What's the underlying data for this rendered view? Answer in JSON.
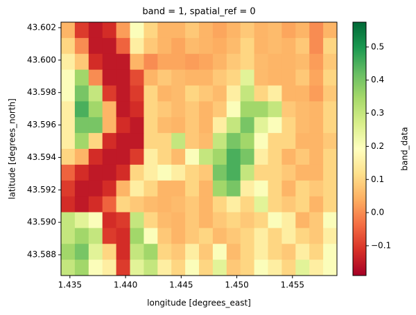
{
  "chart_data": {
    "type": "heatmap",
    "title": "band = 1, spatial_ref = 0",
    "x_label": "longitude [degrees_east]",
    "y_label": "latitude [degrees_north]",
    "colorbar_label": "band_data",
    "colormap": "RdYlGn",
    "xlim": [
      1.4342,
      1.459
    ],
    "ylim": [
      43.58672,
      43.60234
    ],
    "clim": [
      -0.19,
      0.575
    ],
    "xticks": [
      1.435,
      {
        "value": 1.44,
        "label": "1.440"
      },
      1.445,
      {
        "value": 1.45,
        "label": "1.450"
      },
      1.455
    ],
    "yticks": [
      43.588,
      {
        "value": 43.59,
        "label": "43.590"
      },
      43.592,
      43.594,
      43.596,
      43.598,
      {
        "value": 43.6,
        "label": "43.600"
      },
      43.602
    ],
    "cticks": [
      {
        "value": -0.1,
        "label": "−0.1"
      },
      {
        "value": 0,
        "label": "0.0"
      },
      0.1,
      0.2,
      0.3,
      0.4,
      0.5
    ],
    "z": [
      [
        0.05,
        -0.1,
        -0.15,
        -0.12,
        0.02,
        0.2,
        0.1,
        0.05,
        0.05,
        0.08,
        0.05,
        0.03,
        0.05,
        0.08,
        0.05,
        0.06,
        0.03,
        0.05,
        0.0,
        0.05
      ],
      [
        0.1,
        0.0,
        -0.15,
        -0.15,
        -0.05,
        0.15,
        0.08,
        0.05,
        0.03,
        0.06,
        0.05,
        0.04,
        0.06,
        0.1,
        0.05,
        0.06,
        0.05,
        0.08,
        0.0,
        0.1
      ],
      [
        0.15,
        0.08,
        -0.12,
        -0.15,
        -0.15,
        0.05,
        0.0,
        0.03,
        0.03,
        0.02,
        0.03,
        0.05,
        0.08,
        0.1,
        0.06,
        0.05,
        0.05,
        0.06,
        0.02,
        0.08
      ],
      [
        0.2,
        0.35,
        0.0,
        -0.15,
        -0.15,
        -0.08,
        0.05,
        0.08,
        0.06,
        0.05,
        0.05,
        0.08,
        0.1,
        0.25,
        0.06,
        0.05,
        0.05,
        0.08,
        0.03,
        0.1
      ],
      [
        0.2,
        0.4,
        0.3,
        -0.1,
        -0.15,
        -0.1,
        0.1,
        0.05,
        0.06,
        0.1,
        0.08,
        0.06,
        0.15,
        0.3,
        0.1,
        0.15,
        0.05,
        0.05,
        0.02,
        0.08
      ],
      [
        0.15,
        0.45,
        0.35,
        0.05,
        -0.15,
        -0.12,
        0.1,
        0.08,
        0.06,
        0.08,
        0.05,
        0.08,
        0.2,
        0.35,
        0.35,
        0.3,
        0.08,
        0.06,
        0.05,
        0.1
      ],
      [
        0.15,
        0.4,
        0.4,
        0.05,
        -0.12,
        -0.15,
        0.1,
        0.06,
        0.05,
        0.08,
        0.05,
        0.15,
        0.3,
        0.4,
        0.25,
        0.2,
        0.1,
        0.06,
        0.05,
        0.1
      ],
      [
        0.15,
        0.35,
        0.1,
        -0.12,
        -0.15,
        -0.15,
        0.1,
        0.1,
        0.3,
        0.08,
        0.06,
        0.3,
        0.4,
        0.35,
        0.2,
        0.1,
        0.1,
        0.05,
        0.05,
        0.08
      ],
      [
        0.1,
        0.05,
        -0.12,
        -0.15,
        -0.15,
        -0.1,
        0.15,
        0.1,
        0.06,
        0.2,
        0.3,
        0.35,
        0.45,
        0.4,
        0.15,
        0.1,
        0.05,
        0.08,
        0.05,
        0.1
      ],
      [
        -0.05,
        -0.12,
        -0.15,
        -0.15,
        -0.12,
        0.1,
        0.15,
        0.2,
        0.15,
        0.1,
        0.08,
        0.4,
        0.45,
        0.3,
        0.1,
        0.1,
        0.08,
        0.05,
        0.05,
        0.1
      ],
      [
        -0.1,
        -0.15,
        -0.15,
        -0.12,
        0.05,
        0.15,
        0.1,
        0.05,
        0.05,
        0.1,
        0.05,
        0.35,
        0.4,
        0.15,
        0.2,
        0.1,
        0.05,
        0.1,
        0.08,
        0.1
      ],
      [
        -0.12,
        -0.15,
        -0.12,
        -0.05,
        0.1,
        0.08,
        0.06,
        0.05,
        0.06,
        0.08,
        0.05,
        0.1,
        0.15,
        0.1,
        0.25,
        0.1,
        0.08,
        0.1,
        0.05,
        0.1
      ],
      [
        0.3,
        0.25,
        0.2,
        -0.12,
        -0.1,
        0.3,
        0.1,
        0.06,
        0.05,
        0.08,
        0.05,
        0.08,
        0.1,
        0.08,
        0.1,
        0.2,
        0.15,
        0.05,
        0.08,
        0.2
      ],
      [
        0.3,
        0.35,
        0.3,
        -0.1,
        -0.12,
        0.35,
        0.2,
        0.08,
        0.05,
        0.08,
        0.1,
        0.06,
        0.08,
        0.1,
        0.15,
        0.1,
        0.15,
        0.1,
        0.08,
        0.15
      ],
      [
        0.35,
        0.4,
        0.25,
        0.1,
        -0.12,
        0.3,
        0.35,
        0.1,
        0.08,
        0.15,
        0.08,
        0.2,
        0.06,
        0.1,
        0.15,
        0.1,
        0.08,
        0.15,
        0.1,
        0.2
      ],
      [
        0.3,
        0.35,
        0.2,
        0.15,
        -0.1,
        0.25,
        0.3,
        0.15,
        0.1,
        0.2,
        0.1,
        0.25,
        0.08,
        0.1,
        0.2,
        0.15,
        0.1,
        0.25,
        0.15,
        0.2
      ]
    ]
  }
}
